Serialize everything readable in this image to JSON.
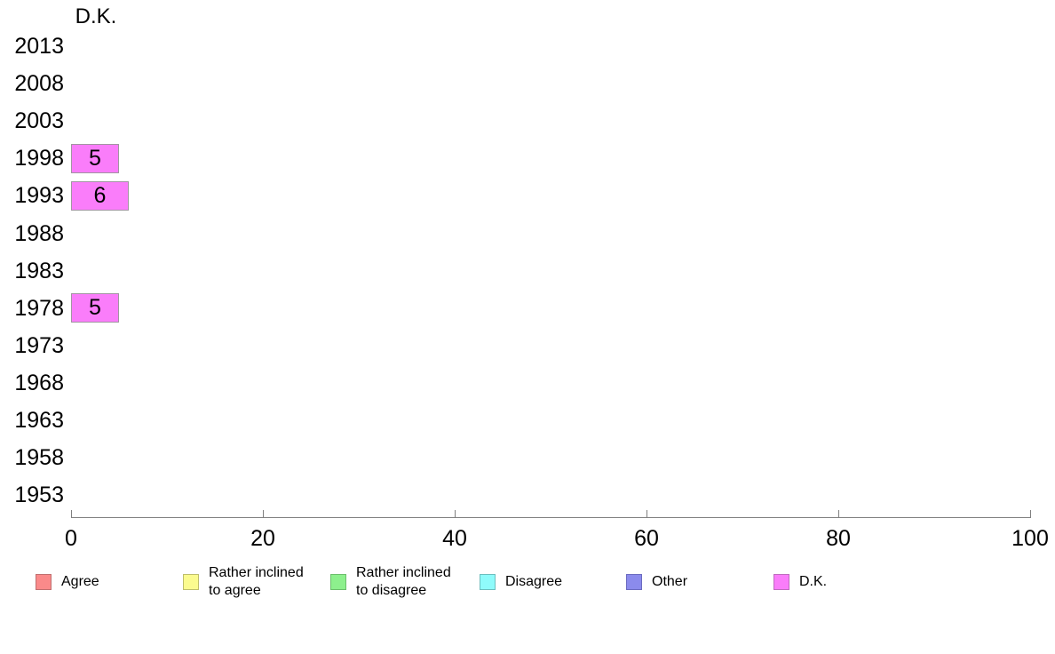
{
  "page": {
    "background": "#ffffff"
  },
  "chart_data": {
    "type": "bar",
    "orientation": "horizontal",
    "title": "D.K.",
    "categories": [
      "2013",
      "2008",
      "2003",
      "1998",
      "1993",
      "1988",
      "1983",
      "1978",
      "1973",
      "1968",
      "1963",
      "1958",
      "1953"
    ],
    "values": [
      0,
      0,
      0,
      5,
      6,
      0,
      0,
      5,
      0,
      0,
      0,
      0,
      0
    ],
    "bar_value_labels": [
      "",
      "",
      "",
      "5",
      "6",
      "",
      "",
      "5",
      "",
      "",
      "",
      "",
      ""
    ],
    "xlabel": "",
    "ylabel": "",
    "xlim": [
      0,
      100
    ],
    "x_ticks": [
      "0",
      "20",
      "40",
      "60",
      "80",
      "100"
    ],
    "grid": false,
    "colors": {
      "bar_fill": "#FA7DFA",
      "bar_border": "#A195A1",
      "axis": "#808080",
      "text": "#000000"
    },
    "legend": {
      "position": "bottom",
      "items": [
        {
          "label": "Agree",
          "lines": [
            "Agree"
          ],
          "color": "#FA8A8A",
          "border": "#C06F6F"
        },
        {
          "label": "Rather inclined to agree",
          "lines": [
            "Rather inclined",
            "to agree"
          ],
          "color": "#FBFB8F",
          "border": "#BEBE6C"
        },
        {
          "label": "Rather inclined to disagree",
          "lines": [
            "Rather inclined",
            "to disagree"
          ],
          "color": "#8DF08D",
          "border": "#6CBE6C"
        },
        {
          "label": "Disagree",
          "lines": [
            "Disagree"
          ],
          "color": "#8FFBFB",
          "border": "#6CBEBE"
        },
        {
          "label": "Other",
          "lines": [
            "Other"
          ],
          "color": "#8B8BEC",
          "border": "#6B6BC0"
        },
        {
          "label": "D.K.",
          "lines": [
            "D.K."
          ],
          "color": "#FA7DFA",
          "border": "#BE6CBE"
        }
      ]
    }
  }
}
